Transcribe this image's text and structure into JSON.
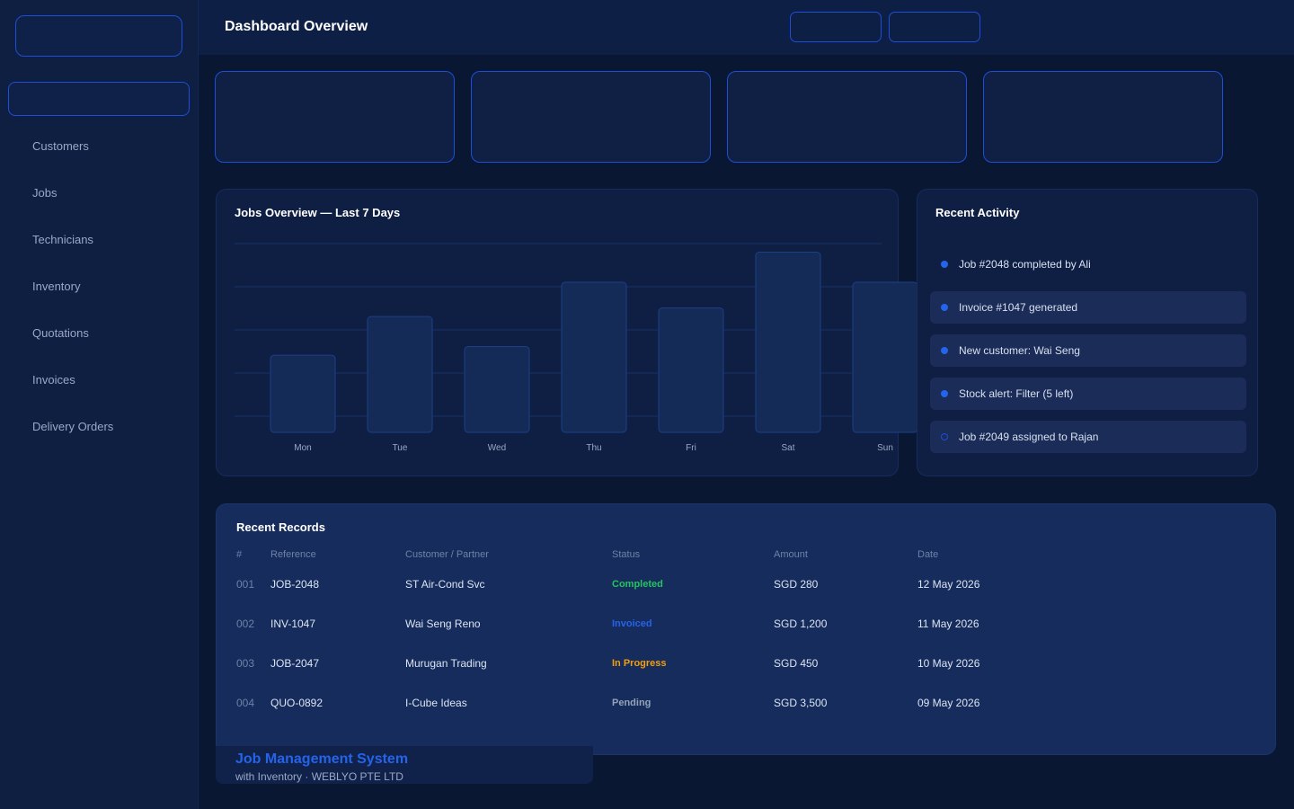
{
  "header": {
    "title": "Dashboard Overview"
  },
  "sidebar": {
    "items": [
      {
        "label": "Customers"
      },
      {
        "label": "Jobs"
      },
      {
        "label": "Technicians"
      },
      {
        "label": "Inventory"
      },
      {
        "label": "Quotations"
      },
      {
        "label": "Invoices"
      },
      {
        "label": "Delivery Orders"
      }
    ]
  },
  "chart_panel": {
    "title": "Jobs Overview — Last 7 Days"
  },
  "chart_data": {
    "type": "bar",
    "title": "Jobs Overview — Last 7 Days",
    "categories": [
      "Mon",
      "Tue",
      "Wed",
      "Thu",
      "Fri",
      "Sat",
      "Sun"
    ],
    "values": [
      18,
      27,
      20,
      35,
      29,
      42,
      35
    ],
    "ylim": [
      0,
      44
    ],
    "grid": true,
    "colors": {
      "bar": "#142a57",
      "bar_stroke": "#1e3f86",
      "grid": "#173066"
    }
  },
  "activity": {
    "title": "Recent Activity",
    "items": [
      {
        "text": "Job #2048 completed by Ali"
      },
      {
        "text": "Invoice #1047 generated"
      },
      {
        "text": "New customer: Wai Seng"
      },
      {
        "text": "Stock alert: Filter (5 left)"
      },
      {
        "text": "Job #2049 assigned to Rajan"
      }
    ]
  },
  "records": {
    "title": "Recent Records",
    "columns": [
      "#",
      "Reference",
      "Customer / Partner",
      "Status",
      "Amount",
      "Date"
    ],
    "rows": [
      {
        "num": "001",
        "ref": "JOB-2048",
        "customer": "ST Air-Cond Svc",
        "status": "Completed",
        "amount": "SGD 280",
        "date": "12 May 2026"
      },
      {
        "num": "002",
        "ref": "INV-1047",
        "customer": "Wai Seng Reno",
        "status": "Invoiced",
        "amount": "SGD 1,200",
        "date": "11 May 2026"
      },
      {
        "num": "003",
        "ref": "JOB-2047",
        "customer": "Murugan Trading",
        "status": "In Progress",
        "amount": "SGD 450",
        "date": "10 May 2026"
      },
      {
        "num": "004",
        "ref": "QUO-0892",
        "customer": "I-Cube Ideas",
        "status": "Pending",
        "amount": "SGD 3,500",
        "date": "09 May 2026"
      }
    ],
    "status_colors": {
      "Completed": "#22c55e",
      "Invoiced": "#2563eb",
      "In Progress": "#f59e0b",
      "Pending": "#94a3b8"
    }
  },
  "brand": {
    "title": "Job Management System",
    "subtitle": "with Inventory · WEBLYO PTE LTD"
  }
}
